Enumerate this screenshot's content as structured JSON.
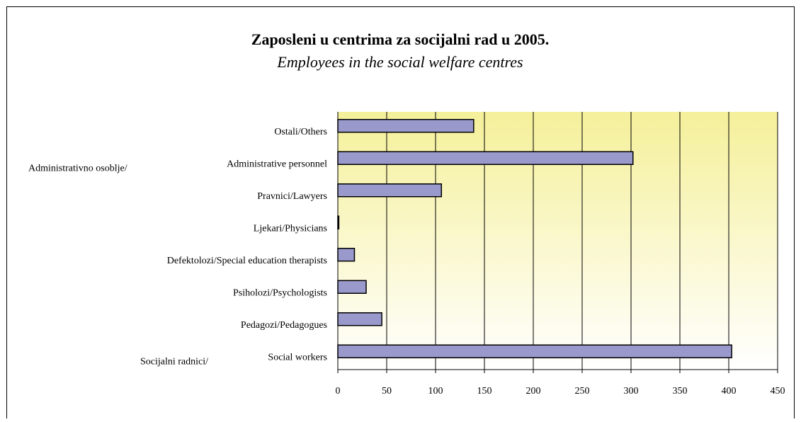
{
  "chart_data": {
    "type": "bar",
    "orientation": "horizontal",
    "title": "Zaposleni u centrima za socijalni rad u 2005.",
    "subtitle": "Employees in the social welfare centres",
    "categories": [
      "Ostali/Others",
      [
        "Administrativno osoblje/",
        "Administrative personnel"
      ],
      "Pravnici/Lawyers",
      "Ljekari/Physicians",
      "Defektolozi/Special education therapists",
      "Psiholozi/Psychologists",
      "Pedagozi/Pedagogues",
      [
        "Socijalni radnici/",
        "Social workers"
      ]
    ],
    "values": [
      139,
      302,
      106,
      1,
      17,
      29,
      45,
      403
    ],
    "color": "#9999cc",
    "xlim": [
      0,
      450
    ],
    "xticks": [
      0,
      50,
      100,
      150,
      200,
      250,
      300,
      350,
      400,
      450
    ],
    "grid": true
  }
}
